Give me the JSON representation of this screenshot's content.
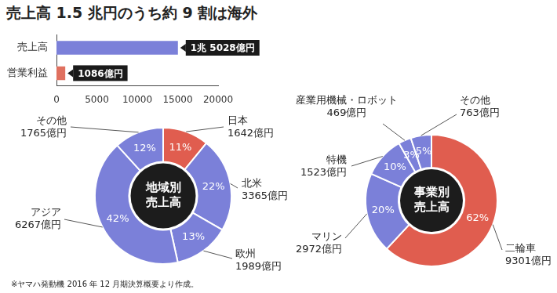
{
  "title": "売上高 1.5 兆円のうち約 9 割は海外",
  "note": "※ヤマハ発動機 2016 年 12 月期決算概要より作成。",
  "chart_data": [
    {
      "type": "bar",
      "orientation": "horizontal",
      "categories": [
        "売上高",
        "営業利益"
      ],
      "values": [
        15028,
        1086
      ],
      "value_labels": [
        "1兆 5028億円",
        "1086億円"
      ],
      "colors": [
        "#7b80d9",
        "#e0705f"
      ],
      "xlim": [
        0,
        20000
      ],
      "xticks": [
        0,
        5000,
        10000,
        15000,
        20000
      ],
      "grid": false,
      "data_labels": true
    },
    {
      "type": "doughnut",
      "title": "地域別\n売上高",
      "categories": [
        "日本",
        "北米",
        "欧州",
        "アジア",
        "その他"
      ],
      "values": [
        1642,
        3365,
        1989,
        6267,
        1765
      ],
      "value_labels": [
        "1642億円",
        "3365億円",
        "1989億円",
        "6267億円",
        "1765億円"
      ],
      "percent_labels": [
        "11%",
        "22%",
        "13%",
        "42%",
        "12%"
      ],
      "colors": [
        "#e05d4f",
        "#7b80d9",
        "#7b80d9",
        "#7b80d9",
        "#7b80d9"
      ],
      "data_labels": true
    },
    {
      "type": "doughnut",
      "title": "事業別\n売上高",
      "categories": [
        "二輪車",
        "マリン",
        "特機",
        "産業用機械・ロボット",
        "その他"
      ],
      "values": [
        9301,
        2972,
        1523,
        469,
        763
      ],
      "value_labels": [
        "9301億円",
        "2972億円",
        "1523億円",
        "469億円",
        "763億円"
      ],
      "percent_labels": [
        "62%",
        "20%",
        "10%",
        "3%",
        "5%"
      ],
      "colors": [
        "#e05d4f",
        "#7b80d9",
        "#7b80d9",
        "#7b80d9",
        "#7b80d9"
      ],
      "data_labels": true
    }
  ]
}
